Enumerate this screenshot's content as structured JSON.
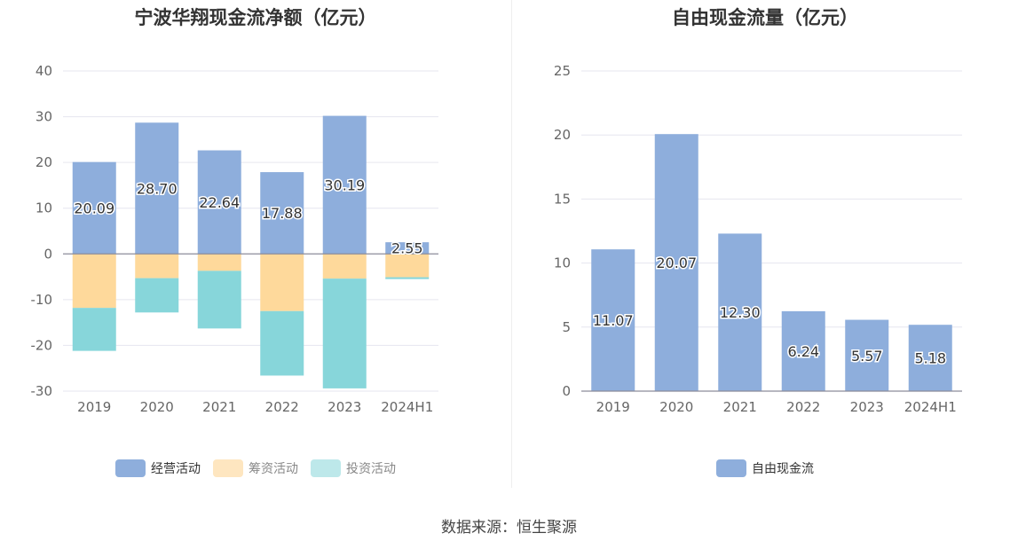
{
  "colors": {
    "operating": "#8eaedc",
    "financing": "#fed99b",
    "investing": "#87d6da",
    "fcf": "#8eaedc",
    "grid": "#e6e6ef",
    "axis_text": "#666666"
  },
  "source_text": "数据来源：恒生聚源",
  "chart_data": [
    {
      "type": "bar",
      "stacked": true,
      "title": "宁波华翔现金流净额（亿元）",
      "categories": [
        "2019",
        "2020",
        "2021",
        "2022",
        "2023",
        "2024H1"
      ],
      "ylim": [
        -30,
        40
      ],
      "yticks": [
        40,
        30,
        20,
        10,
        0,
        -10,
        -20,
        -30
      ],
      "grid": true,
      "legend_position": "bottom",
      "series": [
        {
          "name": "经营活动",
          "color_key": "operating",
          "values": [
            20.09,
            28.7,
            22.64,
            17.88,
            30.19,
            2.55
          ],
          "labels": [
            "20.09",
            "28.70",
            "22.64",
            "17.88",
            "30.19",
            "2.55"
          ]
        },
        {
          "name": "筹资活动",
          "color_key": "financing",
          "values": [
            -11.8,
            -5.3,
            -3.7,
            -12.5,
            -5.4,
            -5.1
          ]
        },
        {
          "name": "投资活动",
          "color_key": "investing",
          "values": [
            -9.4,
            -7.5,
            -12.6,
            -14.1,
            -24.0,
            -0.4
          ]
        }
      ]
    },
    {
      "type": "bar",
      "title": "自由现金流量（亿元）",
      "categories": [
        "2019",
        "2020",
        "2021",
        "2022",
        "2023",
        "2024H1"
      ],
      "ylim": [
        0,
        25
      ],
      "yticks": [
        25,
        20,
        15,
        10,
        5,
        0
      ],
      "grid": true,
      "legend_position": "bottom",
      "series": [
        {
          "name": "自由现金流",
          "color_key": "fcf",
          "values": [
            11.07,
            20.07,
            12.3,
            6.24,
            5.57,
            5.18
          ],
          "labels": [
            "11.07",
            "20.07",
            "12.30",
            "6.24",
            "5.57",
            "5.18"
          ]
        }
      ]
    }
  ]
}
